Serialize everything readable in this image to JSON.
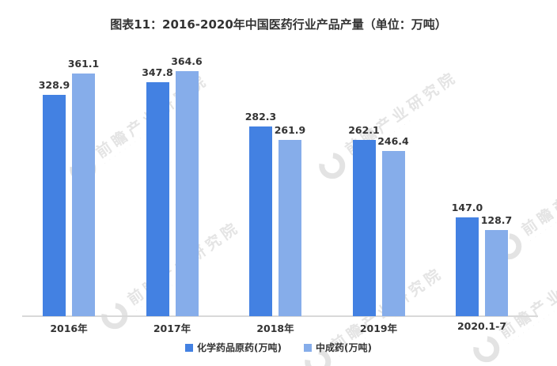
{
  "chart_data": {
    "type": "bar",
    "title": "图表11：2016-2020年中国医药行业产品产量（单位：万吨）",
    "categories": [
      "2016年",
      "2017年",
      "2018年",
      "2019年",
      "2020.1-7"
    ],
    "series": [
      {
        "name": "化学药品原药(万吨)",
        "color": "#4381E2",
        "values": [
          328.9,
          347.8,
          282.3,
          262.1,
          147.0
        ]
      },
      {
        "name": "中成药(万吨)",
        "color": "#86ADEA",
        "values": [
          361.1,
          364.6,
          261.9,
          246.4,
          128.7
        ]
      }
    ],
    "xlabel": "",
    "ylabel": "",
    "ylim": [
      0,
      400
    ],
    "grid": false,
    "y_axis": "hidden",
    "legend_position": "bottom",
    "value_labels": true
  },
  "watermark": {
    "text": "前瞻产业研究院",
    "subtext_dots": "· · · · · · · · · · · ·",
    "logo": "qianzhan-ring-logo"
  },
  "colors": {
    "background": "#FFFFFF",
    "series1": "#4381E2",
    "series2": "#86ADEA",
    "axis_line": "#D9D9D9",
    "text": "#333333",
    "watermark": "#E4E4E4"
  }
}
